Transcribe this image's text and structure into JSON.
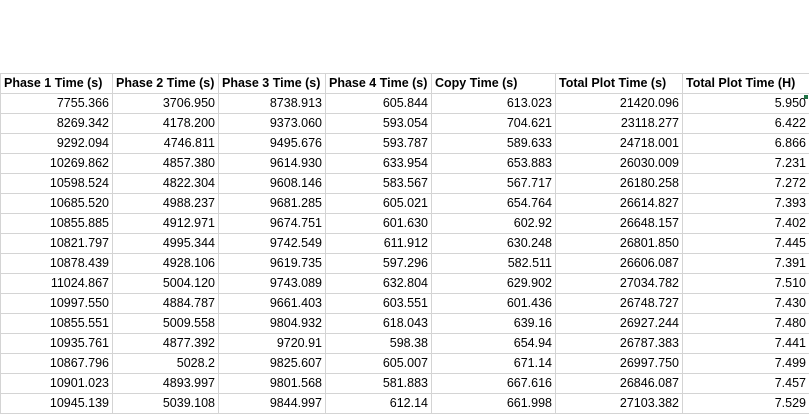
{
  "spreadsheet": {
    "columns": [
      "Phase 1 Time (s)",
      "Phase 2 Time (s)",
      "Phase 3 Time (s)",
      "Phase 4 Time (s)",
      "Copy Time (s)",
      "Total Plot Time (s)",
      "Total Plot Time (H)"
    ],
    "rows": [
      [
        "7755.366",
        "3706.950",
        "8738.913",
        "605.844",
        "613.023",
        "21420.096",
        "5.950"
      ],
      [
        "8269.342",
        "4178.200",
        "9373.060",
        "593.054",
        "704.621",
        "23118.277",
        "6.422"
      ],
      [
        "9292.094",
        "4746.811",
        "9495.676",
        "593.787",
        "589.633",
        "24718.001",
        "6.866"
      ],
      [
        "10269.862",
        "4857.380",
        "9614.930",
        "633.954",
        "653.883",
        "26030.009",
        "7.231"
      ],
      [
        "10598.524",
        "4822.304",
        "9608.146",
        "583.567",
        "567.717",
        "26180.258",
        "7.272"
      ],
      [
        "10685.520",
        "4988.237",
        "9681.285",
        "605.021",
        "654.764",
        "26614.827",
        "7.393"
      ],
      [
        "10855.885",
        "4912.971",
        "9674.751",
        "601.630",
        "602.92",
        "26648.157",
        "7.402"
      ],
      [
        "10821.797",
        "4995.344",
        "9742.549",
        "611.912",
        "630.248",
        "26801.850",
        "7.445"
      ],
      [
        "10878.439",
        "4928.106",
        "9619.735",
        "597.296",
        "582.511",
        "26606.087",
        "7.391"
      ],
      [
        "11024.867",
        "5004.120",
        "9743.089",
        "632.804",
        "629.902",
        "27034.782",
        "7.510"
      ],
      [
        "10997.550",
        "4884.787",
        "9661.403",
        "603.551",
        "601.436",
        "26748.727",
        "7.430"
      ],
      [
        "10855.551",
        "5009.558",
        "9804.932",
        "618.043",
        "639.16",
        "26927.244",
        "7.480"
      ],
      [
        "10935.761",
        "4877.392",
        "9720.91",
        "598.38",
        "654.94",
        "26787.383",
        "7.441"
      ],
      [
        "10867.796",
        "5028.2",
        "9825.607",
        "605.007",
        "671.14",
        "26997.750",
        "7.499"
      ],
      [
        "10901.023",
        "4893.997",
        "9801.568",
        "581.883",
        "667.616",
        "26846.087",
        "7.457"
      ],
      [
        "10945.139",
        "5039.108",
        "9844.997",
        "612.14",
        "661.998",
        "27103.382",
        "7.529"
      ]
    ]
  },
  "colors": {
    "gridline": "#d4d4d4",
    "text": "#000000",
    "fill_handle": "#217346"
  }
}
